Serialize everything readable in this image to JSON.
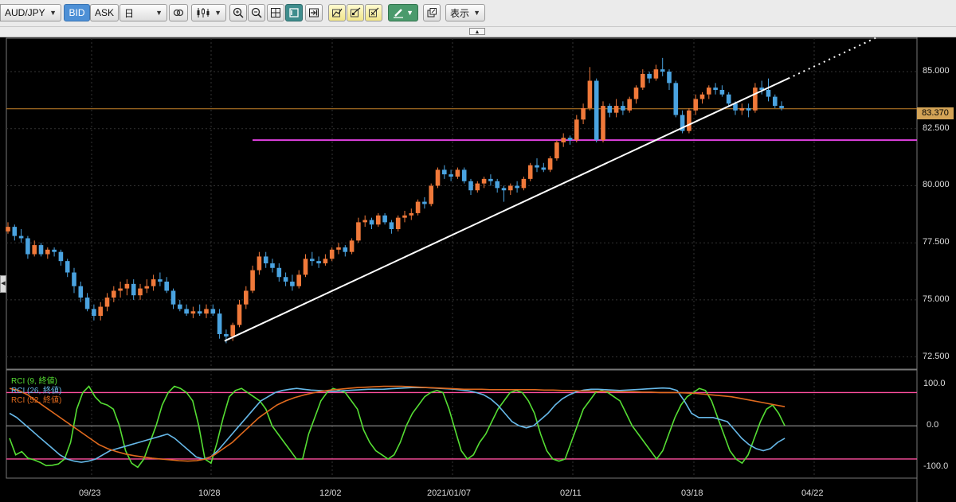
{
  "toolbar": {
    "symbol": "AUD/JPY",
    "bid_label": "BID",
    "ask_label": "ASK",
    "period": "日",
    "display_menu": "表示"
  },
  "price_axis": {
    "labels": [
      "85.000",
      "82.500",
      "80.000",
      "77.500",
      "75.000",
      "72.500"
    ],
    "current_price": "83.370"
  },
  "date_axis": {
    "labels": [
      "09/23",
      "10/28",
      "12/02",
      "2021/01/07",
      "02/11",
      "03/18",
      "04/22"
    ]
  },
  "rci_axis": {
    "labels": [
      "100.0",
      "0.0",
      "-100.0"
    ]
  },
  "rci_legend": [
    {
      "label": "RCI (9, 終値)",
      "color": "#55dd33"
    },
    {
      "label": "RCI (26, 終値)",
      "color": "#66b8e8"
    },
    {
      "label": "RCI (52, 終値)",
      "color": "#e06a1e"
    }
  ],
  "colors": {
    "bull": "#f0793a",
    "bear": "#4aa3e0",
    "trendline": "#ffffff",
    "support": "#e040e0",
    "current_line": "#c8842a",
    "rci_band": "#ff4f9f"
  },
  "chart_data": {
    "type": "candlestick",
    "price_range": [
      72.0,
      86.5
    ],
    "current_price": 83.37,
    "support_level": 82.0,
    "candles": [
      [
        78.0,
        78.4,
        77.9,
        78.2
      ],
      [
        78.2,
        78.3,
        77.6,
        77.8
      ],
      [
        77.8,
        78.1,
        77.5,
        77.7
      ],
      [
        77.7,
        77.8,
        76.8,
        77.0
      ],
      [
        77.0,
        77.6,
        76.9,
        77.4
      ],
      [
        77.4,
        77.5,
        76.9,
        77.0
      ],
      [
        77.0,
        77.3,
        76.8,
        77.2
      ],
      [
        77.2,
        77.3,
        76.9,
        77.1
      ],
      [
        77.1,
        77.2,
        76.5,
        76.7
      ],
      [
        76.7,
        76.8,
        76.0,
        76.2
      ],
      [
        76.2,
        76.4,
        75.3,
        75.6
      ],
      [
        75.6,
        75.8,
        74.9,
        75.1
      ],
      [
        75.1,
        75.3,
        74.5,
        74.6
      ],
      [
        74.6,
        74.8,
        74.1,
        74.3
      ],
      [
        74.3,
        74.9,
        74.1,
        74.7
      ],
      [
        74.7,
        75.3,
        74.5,
        75.1
      ],
      [
        75.1,
        75.6,
        74.9,
        75.4
      ],
      [
        75.4,
        75.8,
        75.1,
        75.5
      ],
      [
        75.5,
        75.9,
        75.2,
        75.7
      ],
      [
        75.7,
        75.9,
        75.0,
        75.2
      ],
      [
        75.2,
        75.7,
        75.0,
        75.5
      ],
      [
        75.5,
        75.9,
        75.3,
        75.6
      ],
      [
        75.6,
        76.1,
        75.4,
        75.9
      ],
      [
        75.9,
        76.2,
        75.6,
        75.8
      ],
      [
        75.8,
        76.0,
        75.3,
        75.4
      ],
      [
        75.4,
        75.5,
        74.6,
        74.8
      ],
      [
        74.8,
        75.0,
        74.5,
        74.6
      ],
      [
        74.6,
        74.8,
        74.3,
        74.4
      ],
      [
        74.4,
        74.7,
        74.2,
        74.5
      ],
      [
        74.5,
        74.8,
        74.3,
        74.4
      ],
      [
        74.4,
        74.8,
        74.2,
        74.6
      ],
      [
        74.6,
        74.8,
        74.3,
        74.4
      ],
      [
        74.4,
        74.6,
        73.3,
        73.5
      ],
      [
        73.5,
        73.7,
        73.1,
        73.4
      ],
      [
        73.4,
        74.0,
        73.2,
        73.9
      ],
      [
        73.9,
        75.0,
        73.8,
        74.8
      ],
      [
        74.8,
        75.6,
        74.6,
        75.4
      ],
      [
        75.4,
        76.5,
        75.3,
        76.3
      ],
      [
        76.3,
        77.1,
        76.1,
        76.9
      ],
      [
        76.9,
        77.1,
        76.4,
        76.6
      ],
      [
        76.6,
        76.8,
        76.2,
        76.4
      ],
      [
        76.4,
        76.6,
        75.8,
        76.0
      ],
      [
        76.0,
        76.2,
        75.6,
        75.8
      ],
      [
        75.8,
        76.1,
        75.4,
        75.6
      ],
      [
        75.6,
        76.3,
        75.5,
        76.1
      ],
      [
        76.1,
        77.0,
        76.0,
        76.8
      ],
      [
        76.8,
        77.1,
        76.5,
        76.7
      ],
      [
        76.7,
        76.9,
        76.4,
        76.6
      ],
      [
        76.6,
        77.0,
        76.5,
        76.8
      ],
      [
        76.8,
        77.3,
        76.7,
        77.2
      ],
      [
        77.2,
        77.5,
        77.0,
        77.3
      ],
      [
        77.3,
        77.4,
        76.9,
        77.1
      ],
      [
        77.1,
        77.7,
        77.0,
        77.6
      ],
      [
        77.6,
        78.6,
        77.5,
        78.4
      ],
      [
        78.4,
        78.7,
        78.2,
        78.5
      ],
      [
        78.5,
        78.6,
        78.1,
        78.3
      ],
      [
        78.3,
        78.8,
        78.2,
        78.7
      ],
      [
        78.7,
        78.8,
        78.3,
        78.4
      ],
      [
        78.4,
        78.5,
        77.9,
        78.1
      ],
      [
        78.1,
        78.7,
        78.0,
        78.6
      ],
      [
        78.6,
        78.9,
        78.4,
        78.7
      ],
      [
        78.7,
        79.0,
        78.5,
        78.8
      ],
      [
        78.8,
        79.4,
        78.7,
        79.3
      ],
      [
        79.3,
        79.5,
        79.0,
        79.2
      ],
      [
        79.2,
        80.1,
        79.1,
        80.0
      ],
      [
        80.0,
        80.8,
        79.9,
        80.7
      ],
      [
        80.7,
        80.9,
        80.3,
        80.5
      ],
      [
        80.5,
        80.7,
        80.2,
        80.4
      ],
      [
        80.4,
        80.8,
        80.3,
        80.7
      ],
      [
        80.7,
        80.8,
        80.1,
        80.2
      ],
      [
        80.2,
        80.3,
        79.6,
        79.8
      ],
      [
        79.8,
        80.2,
        79.7,
        80.1
      ],
      [
        80.1,
        80.4,
        79.9,
        80.3
      ],
      [
        80.3,
        80.5,
        80.0,
        80.2
      ],
      [
        80.2,
        80.3,
        79.7,
        79.9
      ],
      [
        79.9,
        80.0,
        79.3,
        79.8
      ],
      [
        79.8,
        80.1,
        79.6,
        80.0
      ],
      [
        80.0,
        80.2,
        79.7,
        79.9
      ],
      [
        79.9,
        80.4,
        79.8,
        80.3
      ],
      [
        80.3,
        81.0,
        80.2,
        80.9
      ],
      [
        80.9,
        81.2,
        80.6,
        80.8
      ],
      [
        80.8,
        81.0,
        80.6,
        80.7
      ],
      [
        80.7,
        81.3,
        80.6,
        81.2
      ],
      [
        81.2,
        82.0,
        81.1,
        81.9
      ],
      [
        81.9,
        82.3,
        81.7,
        82.1
      ],
      [
        82.1,
        82.2,
        81.8,
        82.0
      ],
      [
        82.0,
        83.1,
        81.9,
        82.9
      ],
      [
        82.9,
        83.6,
        82.7,
        83.4
      ],
      [
        83.4,
        85.2,
        83.3,
        84.6
      ],
      [
        84.6,
        84.7,
        81.9,
        82.0
      ],
      [
        82.0,
        83.7,
        81.9,
        83.5
      ],
      [
        83.5,
        83.6,
        83.0,
        83.2
      ],
      [
        83.2,
        83.8,
        83.0,
        83.5
      ],
      [
        83.5,
        83.7,
        83.1,
        83.3
      ],
      [
        83.3,
        83.9,
        83.2,
        83.8
      ],
      [
        83.8,
        84.4,
        83.6,
        84.3
      ],
      [
        84.3,
        85.1,
        84.2,
        84.9
      ],
      [
        84.9,
        85.0,
        84.5,
        84.7
      ],
      [
        84.7,
        85.3,
        84.6,
        85.1
      ],
      [
        85.1,
        85.6,
        84.8,
        85.0
      ],
      [
        85.0,
        85.1,
        84.2,
        84.5
      ],
      [
        84.5,
        84.6,
        83.0,
        83.1
      ],
      [
        83.1,
        83.3,
        82.3,
        82.4
      ],
      [
        82.4,
        83.4,
        82.3,
        83.3
      ],
      [
        83.3,
        84.0,
        83.1,
        83.8
      ],
      [
        83.8,
        84.1,
        83.6,
        84.0
      ],
      [
        84.0,
        84.4,
        83.8,
        84.3
      ],
      [
        84.3,
        84.5,
        84.0,
        84.2
      ],
      [
        84.2,
        84.4,
        83.9,
        84.0
      ],
      [
        84.0,
        84.1,
        83.5,
        83.6
      ],
      [
        83.6,
        83.7,
        83.1,
        83.3
      ],
      [
        83.3,
        83.6,
        83.1,
        83.4
      ],
      [
        83.4,
        83.6,
        83.0,
        83.3
      ],
      [
        83.3,
        84.5,
        83.2,
        84.3
      ],
      [
        84.3,
        84.6,
        84.0,
        84.2
      ],
      [
        84.2,
        84.7,
        83.7,
        83.9
      ],
      [
        83.9,
        84.0,
        83.4,
        83.5
      ],
      [
        83.5,
        83.7,
        83.3,
        83.4
      ]
    ],
    "trendline": {
      "start": [
        33,
        73.2
      ],
      "end": [
        118,
        84.7
      ],
      "extend_to": [
        150,
        89.0
      ]
    },
    "rci": {
      "range": [
        -100,
        100
      ],
      "series": [
        {
          "name": "RCI (9, 終値)",
          "values": [
            -30,
            -70,
            -62,
            -78,
            -82,
            -88,
            -96,
            -95,
            -92,
            -80,
            -40,
            40,
            80,
            95,
            70,
            55,
            50,
            40,
            0,
            -60,
            -90,
            -100,
            -80,
            -40,
            0,
            50,
            80,
            95,
            90,
            80,
            60,
            0,
            -80,
            -90,
            -40,
            20,
            70,
            85,
            90,
            80,
            70,
            60,
            40,
            0,
            -20,
            -40,
            -60,
            -80,
            -80,
            -20,
            20,
            60,
            80,
            90,
            85,
            80,
            60,
            40,
            -10,
            -40,
            -60,
            -70,
            -80,
            -70,
            -40,
            0,
            30,
            50,
            70,
            80,
            85,
            80,
            40,
            -10,
            -60,
            -80,
            -70,
            -40,
            -20,
            10,
            40,
            60,
            80,
            85,
            80,
            60,
            30,
            -20,
            -60,
            -80,
            -85,
            -80,
            -40,
            0,
            40,
            60,
            80,
            85,
            80,
            70,
            60,
            30,
            0,
            -20,
            -40,
            -60,
            -80,
            -60,
            -20,
            20,
            50,
            70,
            80,
            90,
            85,
            60,
            20,
            -20,
            -60,
            -80,
            -90,
            -70,
            -30,
            10,
            40,
            50,
            30,
            0
          ]
        },
        {
          "name": "RCI (26, 終値)",
          "values": [
            30,
            20,
            5,
            -10,
            -25,
            -40,
            -55,
            -70,
            -80,
            -85,
            -88,
            -85,
            -80,
            -70,
            -60,
            -55,
            -50,
            -45,
            -40,
            -35,
            -30,
            -25,
            -20,
            -30,
            -45,
            -60,
            -75,
            -80,
            -75,
            -60,
            -40,
            -20,
            0,
            20,
            40,
            60,
            70,
            80,
            85,
            88,
            90,
            88,
            86,
            85,
            84,
            83,
            84,
            85,
            86,
            87,
            88,
            88,
            88,
            89,
            90,
            91,
            92,
            92,
            92,
            91,
            90,
            89,
            88,
            86,
            84,
            80,
            75,
            65,
            50,
            30,
            10,
            0,
            -5,
            0,
            15,
            30,
            50,
            65,
            75,
            82,
            86,
            88,
            88,
            87,
            86,
            85,
            86,
            87,
            88,
            89,
            90,
            91,
            90,
            85,
            60,
            30,
            20,
            20,
            20,
            15,
            10,
            -10,
            -30,
            -45,
            -55,
            -60,
            -55,
            -40,
            -30
          ],
          "offset": 0
        },
        {
          "name": "RCI (52, 終値)",
          "values": [
            90,
            85,
            75,
            60,
            45,
            30,
            15,
            0,
            -15,
            -30,
            -45,
            -55,
            -62,
            -68,
            -72,
            -75,
            -78,
            -80,
            -82,
            -84,
            -85,
            -84,
            -80,
            -70,
            -55,
            -40,
            -20,
            0,
            20,
            35,
            50,
            60,
            68,
            74,
            79,
            83,
            86,
            88,
            90,
            92,
            93,
            94,
            95,
            95,
            95,
            94,
            93,
            92,
            91,
            90,
            89,
            88,
            88,
            88,
            87,
            87,
            87,
            87,
            87,
            87,
            86,
            86,
            85,
            85,
            84,
            84,
            83,
            83,
            82,
            82,
            82,
            81,
            81,
            80,
            80,
            80,
            79,
            78,
            76,
            74,
            72,
            70,
            66,
            62,
            58,
            54,
            50,
            46
          ]
        }
      ]
    }
  }
}
